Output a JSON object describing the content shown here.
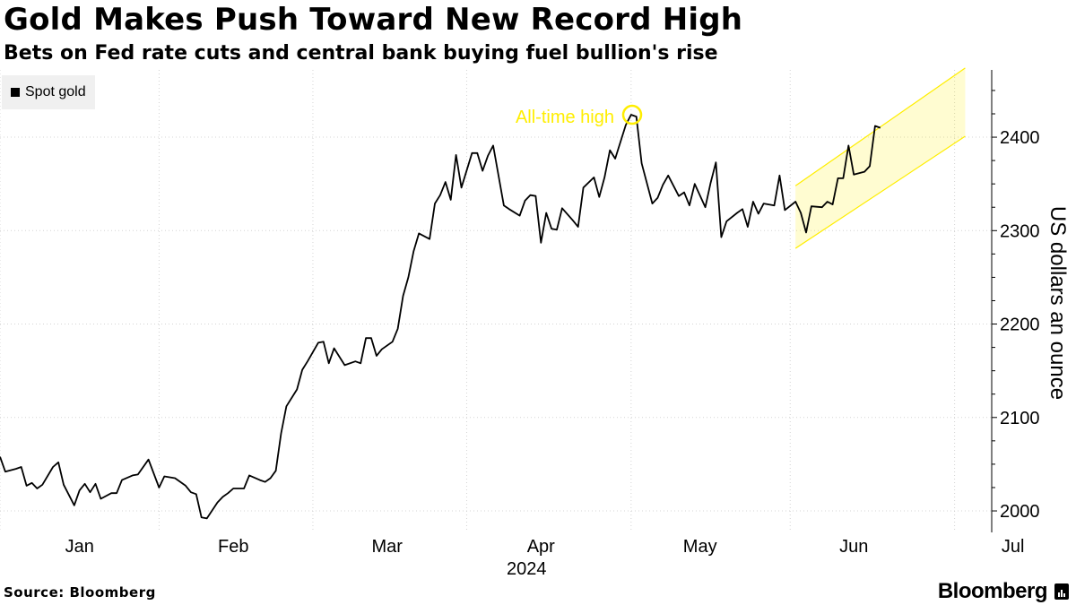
{
  "header": {
    "title": "Gold Makes Push Toward New Record High",
    "subtitle": "Bets on Fed rate cuts and central bank buying fuel bullion's rise"
  },
  "legend": {
    "label": "Spot gold"
  },
  "footer": {
    "source": "Source: Bloomberg",
    "brand": "Bloomberg"
  },
  "chart_data": {
    "type": "line",
    "ylabel": "US dollars an ounce",
    "ylim": [
      1977,
      2472
    ],
    "yticks": [
      2000,
      2100,
      2200,
      2300,
      2400
    ],
    "xlim": [
      0,
      187
    ],
    "xtick_labels": [
      {
        "label": "Jan",
        "x": 15
      },
      {
        "label": "Feb",
        "x": 44
      },
      {
        "label": "Mar",
        "x": 73
      },
      {
        "label": "Apr",
        "x": 102
      },
      {
        "label": "May",
        "x": 132
      },
      {
        "label": "Jun",
        "x": 161
      },
      {
        "label": "Jul",
        "x": 191
      }
    ],
    "xgrid": [
      0,
      30,
      59,
      88,
      119,
      149,
      180
    ],
    "year_label": "2024",
    "grid": true,
    "legend_position": "top-left",
    "series": [
      {
        "name": "Spot gold",
        "color": "#000000",
        "points": [
          [
            0,
            2058
          ],
          [
            1,
            2042
          ],
          [
            3,
            2045
          ],
          [
            4,
            2047
          ],
          [
            5,
            2027
          ],
          [
            6,
            2030
          ],
          [
            7,
            2024
          ],
          [
            8,
            2028
          ],
          [
            10,
            2047
          ],
          [
            11,
            2052
          ],
          [
            12,
            2028
          ],
          [
            14,
            2006
          ],
          [
            15,
            2022
          ],
          [
            16,
            2029
          ],
          [
            17,
            2020
          ],
          [
            18,
            2029
          ],
          [
            19,
            2013
          ],
          [
            21,
            2019
          ],
          [
            22,
            2019
          ],
          [
            23,
            2033
          ],
          [
            25,
            2038
          ],
          [
            26,
            2039
          ],
          [
            28,
            2055
          ],
          [
            30,
            2025
          ],
          [
            31,
            2037
          ],
          [
            32,
            2036
          ],
          [
            33,
            2035
          ],
          [
            35,
            2027
          ],
          [
            36,
            2020
          ],
          [
            37,
            2018
          ],
          [
            38,
            1993
          ],
          [
            39,
            1992
          ],
          [
            41,
            2009
          ],
          [
            42,
            2015
          ],
          [
            43,
            2019
          ],
          [
            44,
            2024
          ],
          [
            46,
            2024
          ],
          [
            47,
            2038
          ],
          [
            49,
            2033
          ],
          [
            50,
            2031
          ],
          [
            51,
            2035
          ],
          [
            52,
            2043
          ],
          [
            53,
            2083
          ],
          [
            54,
            2112
          ],
          [
            56,
            2130
          ],
          [
            57,
            2151
          ],
          [
            58,
            2160
          ],
          [
            60,
            2180
          ],
          [
            61,
            2181
          ],
          [
            62,
            2158
          ],
          [
            63,
            2174
          ],
          [
            64,
            2165
          ],
          [
            65,
            2156
          ],
          [
            67,
            2160
          ],
          [
            68,
            2158
          ],
          [
            69,
            2185
          ],
          [
            70,
            2185
          ],
          [
            71,
            2166
          ],
          [
            72,
            2173
          ],
          [
            74,
            2181
          ],
          [
            75,
            2195
          ],
          [
            76,
            2230
          ],
          [
            77,
            2250
          ],
          [
            78,
            2278
          ],
          [
            79,
            2297
          ],
          [
            81,
            2291
          ],
          [
            82,
            2329
          ],
          [
            83,
            2338
          ],
          [
            84,
            2352
          ],
          [
            85,
            2333
          ],
          [
            86,
            2381
          ],
          [
            87,
            2346
          ],
          [
            89,
            2383
          ],
          [
            90,
            2383
          ],
          [
            91,
            2364
          ],
          [
            92,
            2380
          ],
          [
            93,
            2391
          ],
          [
            95,
            2327
          ],
          [
            96,
            2323
          ],
          [
            98,
            2316
          ],
          [
            99,
            2332
          ],
          [
            100,
            2338
          ],
          [
            101,
            2337
          ],
          [
            102,
            2287
          ],
          [
            103,
            2319
          ],
          [
            104,
            2302
          ],
          [
            105,
            2301
          ],
          [
            106,
            2324
          ],
          [
            108,
            2311
          ],
          [
            109,
            2304
          ],
          [
            110,
            2346
          ],
          [
            112,
            2357
          ],
          [
            113,
            2336
          ],
          [
            114,
            2357
          ],
          [
            115,
            2386
          ],
          [
            116,
            2377
          ],
          [
            118,
            2413
          ],
          [
            119,
            2424
          ],
          [
            120,
            2422
          ],
          [
            121,
            2372
          ],
          [
            123,
            2329
          ],
          [
            124,
            2335
          ],
          [
            125,
            2349
          ],
          [
            126,
            2359
          ],
          [
            128,
            2337
          ],
          [
            129,
            2341
          ],
          [
            130,
            2327
          ],
          [
            131,
            2350
          ],
          [
            133,
            2325
          ],
          [
            134,
            2351
          ],
          [
            135,
            2373
          ],
          [
            136,
            2293
          ],
          [
            137,
            2310
          ],
          [
            139,
            2319
          ],
          [
            140,
            2323
          ],
          [
            141,
            2304
          ],
          [
            142,
            2331
          ],
          [
            143,
            2318
          ],
          [
            144,
            2329
          ],
          [
            146,
            2327
          ],
          [
            147,
            2359
          ],
          [
            148,
            2322
          ],
          [
            150,
            2331
          ],
          [
            151,
            2319
          ],
          [
            152,
            2298
          ],
          [
            153,
            2326
          ],
          [
            155,
            2325
          ],
          [
            156,
            2331
          ],
          [
            157,
            2328
          ],
          [
            158,
            2356
          ],
          [
            159,
            2356
          ],
          [
            160,
            2391
          ],
          [
            161,
            2360
          ],
          [
            163,
            2363
          ],
          [
            164,
            2369
          ],
          [
            165,
            2412
          ],
          [
            166,
            2410
          ]
        ]
      }
    ],
    "annotations": [
      {
        "text": "All-time high",
        "x": 119.2,
        "y": 2424,
        "color": "#ffee00"
      }
    ],
    "highlight_band": {
      "color": "#ffee00",
      "lower_start": [
        150,
        2281
      ],
      "lower_end": [
        182,
        2401
      ],
      "upper_start": [
        150,
        2348
      ],
      "upper_end": [
        182,
        2474
      ]
    }
  }
}
